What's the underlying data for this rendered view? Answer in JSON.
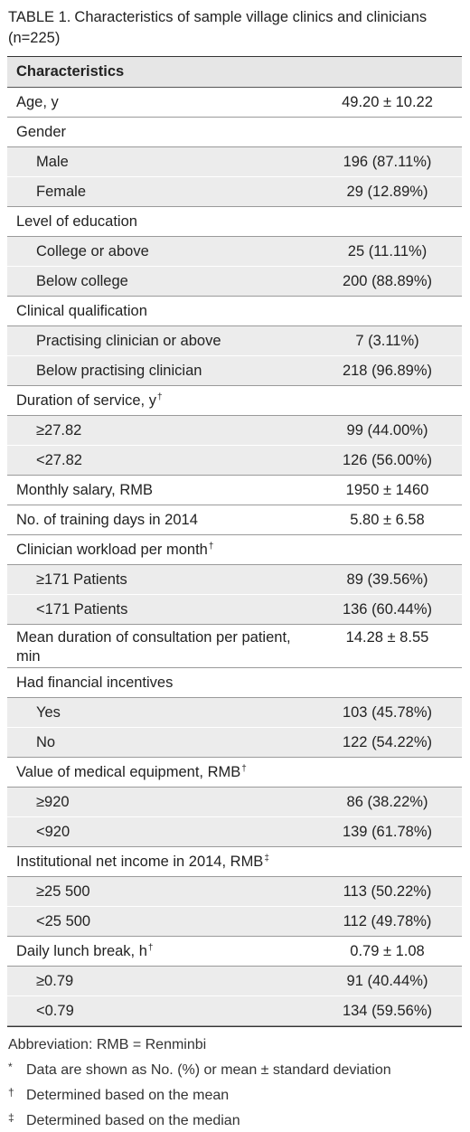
{
  "title": {
    "label": "TABLE 1.",
    "text": "Characteristics of sample village clinics and clinicians (n=225)"
  },
  "table": {
    "header": "Characteristics",
    "rows": [
      {
        "label": "Age, y",
        "value": "49.20 ± 10.22"
      },
      {
        "label": "Gender",
        "items": [
          {
            "label": "Male",
            "value": "196 (87.11%)"
          },
          {
            "label": "Female",
            "value": "29 (12.89%)"
          }
        ]
      },
      {
        "label": "Level of education",
        "items": [
          {
            "label": "College or above",
            "value": "25 (11.11%)"
          },
          {
            "label": "Below college",
            "value": "200 (88.89%)"
          }
        ]
      },
      {
        "label": "Clinical qualification",
        "items": [
          {
            "label": "Practising clinician or above",
            "value": "7 (3.11%)"
          },
          {
            "label": "Below practising clinician",
            "value": "218 (96.89%)"
          }
        ]
      },
      {
        "label": "Duration of service, y",
        "note": "†",
        "items": [
          {
            "label": "≥27.82",
            "value": "99 (44.00%)"
          },
          {
            "label": "<27.82",
            "value": "126 (56.00%)"
          }
        ]
      },
      {
        "label": "Monthly salary, RMB",
        "value": "1950 ± 1460"
      },
      {
        "label": "No. of training days in 2014",
        "value": "5.80 ± 6.58"
      },
      {
        "label": "Clinician workload per month",
        "note": "†",
        "items": [
          {
            "label": "≥171 Patients",
            "value": "89 (39.56%)"
          },
          {
            "label": "<171 Patients",
            "value": "136 (60.44%)"
          }
        ]
      },
      {
        "label": "Mean duration of consultation per patient, min",
        "value": "14.28 ± 8.55"
      },
      {
        "label": "Had financial incentives",
        "items": [
          {
            "label": "Yes",
            "value": "103 (45.78%)"
          },
          {
            "label": "No",
            "value": "122 (54.22%)"
          }
        ]
      },
      {
        "label": "Value of medical equipment, RMB",
        "note": "†",
        "items": [
          {
            "label": "≥920",
            "value": "86 (38.22%)"
          },
          {
            "label": "<920",
            "value": "139 (61.78%)"
          }
        ]
      },
      {
        "label": "Institutional net income in 2014, RMB",
        "note": "‡",
        "items": [
          {
            "label": "≥25 500",
            "value": "113 (50.22%)"
          },
          {
            "label": "<25 500",
            "value": "112 (49.78%)"
          }
        ]
      },
      {
        "label": "Daily lunch break, h",
        "note": "†",
        "value": "0.79 ± 1.08",
        "items": [
          {
            "label": "≥0.79",
            "value": "91 (40.44%)"
          },
          {
            "label": "<0.79",
            "value": "134 (59.56%)"
          }
        ]
      }
    ]
  },
  "footnotes": {
    "abbreviation": "Abbreviation: RMB = Renminbi",
    "notes": [
      {
        "mark": "*",
        "text": "Data are shown as No. (%) or mean ± standard deviation"
      },
      {
        "mark": "†",
        "text": "Determined based on the mean"
      },
      {
        "mark": "‡",
        "text": "Determined based on the median"
      }
    ]
  }
}
